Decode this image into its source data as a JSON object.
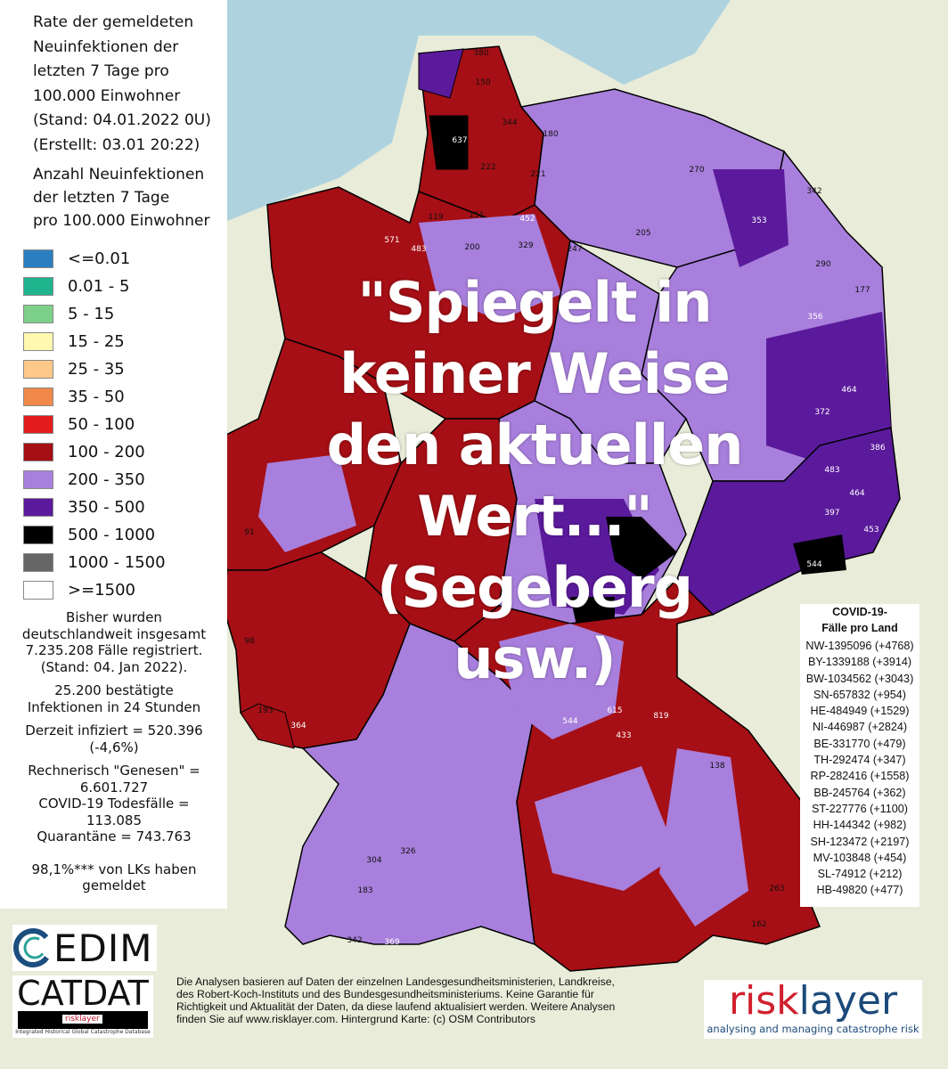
{
  "title": {
    "lines": [
      "Rate der gemeldeten",
      "Neuinfektionen der",
      "letzten 7 Tage pro",
      "100.000 Einwohner",
      "(Stand: 04.01.2022 0U)",
      "(Erstellt: 03.01 20:22)"
    ]
  },
  "subtitle": {
    "lines": [
      "Anzahl Neuinfektionen",
      "der letzten 7 Tage",
      "pro 100.000 Einwohner"
    ]
  },
  "legend": [
    {
      "label": "<=0.01",
      "color": "#2b7fc0"
    },
    {
      "label": "0.01 - 5",
      "color": "#1fb38e"
    },
    {
      "label": "5 - 15",
      "color": "#7dd08a"
    },
    {
      "label": "15 - 25",
      "color": "#fff8b0"
    },
    {
      "label": "25 - 35",
      "color": "#fdc98a"
    },
    {
      "label": "35 - 50",
      "color": "#f0894a"
    },
    {
      "label": "50 - 100",
      "color": "#e41c1c"
    },
    {
      "label": "100 - 200",
      "color": "#a50f15"
    },
    {
      "label": "200 - 350",
      "color": "#a87fdc"
    },
    {
      "label": "350 - 500",
      "color": "#5b1a9c"
    },
    {
      "label": "500 - 1000",
      "color": "#000000"
    },
    {
      "label": "1000 - 1500",
      "color": "#666666"
    },
    {
      "label": ">=1500",
      "color": "#ffffff"
    }
  ],
  "stats": {
    "total": [
      "Bisher wurden",
      "deutschlandweit insgesamt",
      "7.235.208 Fälle registriert.",
      "(Stand: 04. Jan 2022)."
    ],
    "daily": [
      "25.200 bestätigte",
      "Infektionen in 24 Stunden"
    ],
    "infected": [
      "Derzeit infiziert = 520.396",
      "(-4,6%)"
    ],
    "recovered": [
      "Rechnerisch \"Genesen\" =",
      "6.601.727",
      "COVID-19 Todesfälle =",
      "113.085",
      "Quarantäne = 743.763"
    ],
    "reported": [
      "98,1%*** von LKs haben",
      "gemeldet"
    ]
  },
  "states_box": {
    "header": [
      "COVID-19-",
      "Fälle pro Land"
    ],
    "rows": [
      "NW-1395096 (+4768)",
      "BY-1339188 (+3914)",
      "BW-1034562 (+3043)",
      "SN-657832 (+954)",
      "HE-484949 (+1529)",
      "NI-446987 (+2824)",
      "BE-331770 (+479)",
      "TH-292474 (+347)",
      "RP-282416 (+1558)",
      "BB-245764 (+362)",
      "ST-227776 (+1100)",
      "HH-144342 (+982)",
      "SH-123472 (+2197)",
      "MV-103848 (+454)",
      "SL-74912 (+212)",
      "HB-49820 (+477)"
    ]
  },
  "overlay_quote": [
    "\"Spiegelt in",
    "keiner Weise",
    "den aktuellen",
    "Wert...\"",
    "(Segeberg",
    "usw.)"
  ],
  "footer": [
    "Die Analysen basieren auf Daten der einzelnen Landesgesundheitsministerien, Landkreise,",
    " des Robert-Koch-Instituts und des Bundesgesundheitsministeriums. Keine Garantie für",
    "Richtigkeit und Aktualität der Daten, da diese laufend aktualisiert werden. Weitere Analysen",
    "finden Sie auf www.risklayer.com. Hintergrund Karte: (c) OSM Contributors"
  ],
  "logos": {
    "cedim": "EDIM",
    "catdat": "CATDAT",
    "catdat_sub": "Integrated Historical Global Catastrophe Database",
    "catdat_badge": "risklayer",
    "risk_a": "risk",
    "risk_b": "layer",
    "risk_tag": "analysing and managing catastrophe risk"
  },
  "map_labels": [
    {
      "v": "380"
    },
    {
      "v": "150"
    },
    {
      "v": "637"
    },
    {
      "v": "344"
    },
    {
      "v": "180"
    },
    {
      "v": "222"
    },
    {
      "v": "221"
    },
    {
      "v": "452"
    },
    {
      "v": "270"
    },
    {
      "v": "342"
    },
    {
      "v": "353"
    },
    {
      "v": "205"
    },
    {
      "v": "290"
    },
    {
      "v": "119"
    },
    {
      "v": "151"
    },
    {
      "v": "483"
    },
    {
      "v": "571"
    },
    {
      "v": "200"
    },
    {
      "v": "329"
    },
    {
      "v": "247"
    },
    {
      "v": "177"
    },
    {
      "v": "356"
    },
    {
      "v": "464"
    },
    {
      "v": "386"
    },
    {
      "v": "372"
    },
    {
      "v": "483"
    },
    {
      "v": "464"
    },
    {
      "v": "453"
    },
    {
      "v": "397"
    },
    {
      "v": "544"
    },
    {
      "v": "615"
    },
    {
      "v": "819"
    },
    {
      "v": "544"
    },
    {
      "v": "433"
    },
    {
      "v": "91"
    },
    {
      "v": "98"
    },
    {
      "v": "364"
    },
    {
      "v": "369"
    },
    {
      "v": "193"
    },
    {
      "v": "304"
    },
    {
      "v": "326"
    },
    {
      "v": "183"
    },
    {
      "v": "342"
    },
    {
      "v": "162"
    },
    {
      "v": "138"
    },
    {
      "v": "263"
    }
  ]
}
